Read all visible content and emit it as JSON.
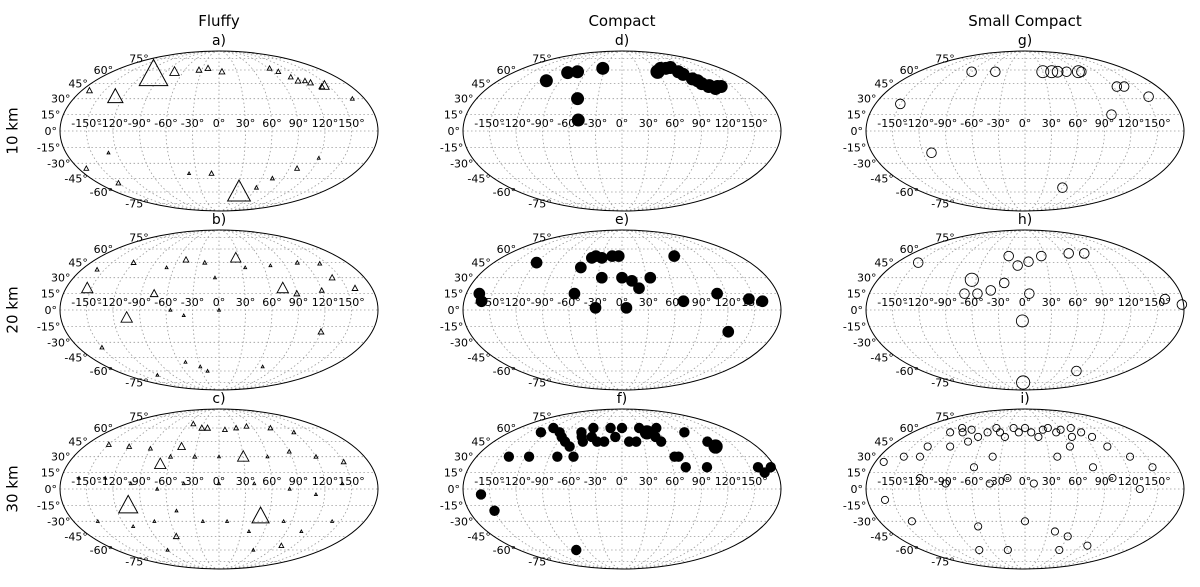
{
  "columns": [
    "Fluffy",
    "Compact",
    "Small Compact"
  ],
  "rows": [
    "10 km",
    "20 km",
    "30 km"
  ],
  "lon_ticks": [
    "-150°",
    "-120°",
    "-90°",
    "-60°",
    "-30°",
    "0°",
    "30°",
    "60°",
    "90°",
    "120°",
    "150°"
  ],
  "lat_ticks": [
    "75°",
    "60°",
    "45°",
    "30°",
    "15°",
    "0°",
    "-15°",
    "-30°",
    "-45°",
    "-60°",
    "-75°"
  ],
  "chart_data": [
    {
      "type": "scatter",
      "projection": "mollweide",
      "panel": "a)",
      "column": "Fluffy",
      "row": "10 km",
      "marker": "triangle-open",
      "points": [
        [
          -105,
          55,
          3
        ],
        [
          -130,
          32,
          1.6
        ],
        [
          -170,
          38,
          0.6
        ],
        [
          -75,
          58,
          1
        ],
        [
          -35,
          60,
          0.6
        ],
        [
          -20,
          62,
          0.6
        ],
        [
          5,
          58,
          0.6
        ],
        [
          92,
          62,
          0.5
        ],
        [
          100,
          58,
          0.5
        ],
        [
          110,
          52,
          0.5
        ],
        [
          115,
          48,
          0.6
        ],
        [
          125,
          48,
          0.5
        ],
        [
          130,
          46,
          0.6
        ],
        [
          140,
          42,
          0.6
        ],
        [
          145,
          43,
          1
        ],
        [
          165,
          30,
          0.4
        ],
        [
          -170,
          -35,
          0.5
        ],
        [
          -130,
          -20,
          0.3
        ],
        [
          -150,
          -50,
          0.5
        ],
        [
          -40,
          -40,
          0.3
        ],
        [
          -10,
          -40,
          0.5
        ],
        [
          35,
          -60,
          2.4
        ],
        [
          60,
          -55,
          0.4
        ],
        [
          75,
          -45,
          0.4
        ],
        [
          100,
          -35,
          0.5
        ],
        [
          120,
          -25,
          0.3
        ]
      ]
    },
    {
      "type": "scatter",
      "projection": "mollweide",
      "panel": "d)",
      "column": "Compact",
      "row": "10 km",
      "marker": "circle-filled",
      "points": [
        [
          -110,
          48,
          1
        ],
        [
          -90,
          57,
          1
        ],
        [
          -75,
          58,
          1
        ],
        [
          -55,
          30,
          1
        ],
        [
          -35,
          62,
          1
        ],
        [
          -50,
          10,
          1
        ],
        [
          60,
          58,
          1.1
        ],
        [
          70,
          62,
          1
        ],
        [
          80,
          62,
          1
        ],
        [
          90,
          63,
          1
        ],
        [
          95,
          58,
          1
        ],
        [
          98,
          55,
          1
        ],
        [
          105,
          50,
          1
        ],
        [
          110,
          48,
          1
        ],
        [
          112,
          45,
          1
        ],
        [
          118,
          42,
          1
        ],
        [
          120,
          43,
          1
        ],
        [
          125,
          40,
          1
        ],
        [
          130,
          42,
          1
        ],
        [
          135,
          42,
          1
        ]
      ]
    },
    {
      "type": "scatter",
      "projection": "mollweide",
      "panel": "g)",
      "column": "Small Compact",
      "row": "10 km",
      "marker": "circle-open",
      "points": [
        [
          -150,
          25,
          0.8
        ],
        [
          -90,
          58,
          0.8
        ],
        [
          -50,
          58,
          0.8
        ],
        [
          30,
          58,
          1
        ],
        [
          45,
          58,
          1
        ],
        [
          55,
          58,
          0.9
        ],
        [
          70,
          58,
          0.8
        ],
        [
          90,
          58,
          1
        ],
        [
          95,
          58,
          0.8
        ],
        [
          125,
          42,
          0.8
        ],
        [
          135,
          42,
          0.8
        ],
        [
          155,
          32,
          0.8
        ],
        [
          100,
          15,
          0.8
        ],
        [
          -110,
          -20,
          0.8
        ],
        [
          60,
          -55,
          0.8
        ]
      ]
    },
    {
      "type": "scatter",
      "projection": "mollweide",
      "panel": "b)",
      "column": "Fluffy",
      "row": "20 km",
      "marker": "triangle-open",
      "points": [
        [
          -155,
          20,
          1.2
        ],
        [
          -105,
          -7,
          1.2
        ],
        [
          -75,
          15,
          0.8
        ],
        [
          -160,
          38,
          0.4
        ],
        [
          -120,
          45,
          0.5
        ],
        [
          -70,
          40,
          0.3
        ],
        [
          -48,
          48,
          0.6
        ],
        [
          -20,
          45,
          0.4
        ],
        [
          -5,
          30,
          0.3
        ],
        [
          25,
          50,
          1.1
        ],
        [
          35,
          40,
          0.3
        ],
        [
          75,
          20,
          1.2
        ],
        [
          90,
          15,
          0.6
        ],
        [
          120,
          18,
          0.5
        ],
        [
          140,
          30,
          0.6
        ],
        [
          160,
          20,
          0.6
        ],
        [
          110,
          45,
          0.4
        ],
        [
          140,
          44,
          0.4
        ],
        [
          70,
          42,
          0.3
        ],
        [
          -120,
          -65,
          0.3
        ],
        [
          -150,
          -35,
          0.4
        ],
        [
          -55,
          0,
          0.3
        ],
        [
          -40,
          -5,
          0.3
        ],
        [
          0,
          0,
          0.3
        ],
        [
          120,
          -20,
          0.6
        ],
        [
          -50,
          -50,
          0.3
        ],
        [
          -30,
          -55,
          0.3
        ],
        [
          -20,
          -60,
          0.3
        ],
        [
          70,
          -55,
          0.3
        ]
      ]
    },
    {
      "type": "scatter",
      "projection": "mollweide",
      "panel": "e)",
      "column": "Compact",
      "row": "20 km",
      "marker": "circle-filled",
      "points": [
        [
          -165,
          15,
          0.9
        ],
        [
          -160,
          8,
          0.9
        ],
        [
          -120,
          45,
          0.9
        ],
        [
          -55,
          40,
          0.9
        ],
        [
          -45,
          50,
          0.9
        ],
        [
          -40,
          52,
          0.9
        ],
        [
          -30,
          50,
          0.9
        ],
        [
          -15,
          52,
          0.9
        ],
        [
          -5,
          52,
          0.9
        ],
        [
          -25,
          30,
          0.9
        ],
        [
          0,
          30,
          0.9
        ],
        [
          12,
          27,
          0.9
        ],
        [
          20,
          20,
          0.9
        ],
        [
          35,
          30,
          0.9
        ],
        [
          80,
          52,
          0.9
        ],
        [
          -55,
          15,
          0.9
        ],
        [
          -30,
          2,
          0.9
        ],
        [
          5,
          2,
          0.9
        ],
        [
          70,
          8,
          0.9
        ],
        [
          110,
          15,
          0.9
        ],
        [
          145,
          10,
          0.9
        ],
        [
          160,
          8,
          0.9
        ],
        [
          125,
          -20,
          0.9
        ]
      ]
    },
    {
      "type": "scatter",
      "projection": "mollweide",
      "panel": "h)",
      "column": "Small Compact",
      "row": "20 km",
      "marker": "circle-open",
      "points": [
        [
          -150,
          45,
          0.8
        ],
        [
          -65,
          28,
          1.1
        ],
        [
          -70,
          15,
          0.8
        ],
        [
          -55,
          15,
          0.8
        ],
        [
          -40,
          18,
          0.8
        ],
        [
          -25,
          25,
          0.8
        ],
        [
          -25,
          52,
          0.8
        ],
        [
          -10,
          42,
          0.8
        ],
        [
          5,
          46,
          0.8
        ],
        [
          25,
          52,
          0.8
        ],
        [
          70,
          55,
          0.8
        ],
        [
          95,
          55,
          0.8
        ],
        [
          5,
          15,
          0.8
        ],
        [
          -3,
          -10,
          1
        ],
        [
          160,
          10,
          0.8
        ],
        [
          178,
          5,
          0.8
        ],
        [
          -5,
          -75,
          1.1
        ],
        [
          90,
          -60,
          0.8
        ]
      ]
    },
    {
      "type": "scatter",
      "projection": "mollweide",
      "panel": "c)",
      "column": "Fluffy",
      "row": "30 km",
      "marker": "triangle-open",
      "points": [
        [
          -105,
          -15,
          2
        ],
        [
          -70,
          23,
          1.2
        ],
        [
          -50,
          40,
          0.8
        ],
        [
          30,
          30,
          1.2
        ],
        [
          50,
          -25,
          1.8
        ],
        [
          -60,
          -45,
          0.6
        ],
        [
          -30,
          60,
          0.6
        ],
        [
          -50,
          65,
          0.5
        ],
        [
          -20,
          60,
          0.6
        ],
        [
          10,
          58,
          0.5
        ],
        [
          30,
          60,
          0.5
        ],
        [
          50,
          62,
          0.5
        ],
        [
          90,
          60,
          0.5
        ],
        [
          120,
          55,
          0.4
        ],
        [
          -150,
          42,
          0.5
        ],
        [
          -120,
          40,
          0.5
        ],
        [
          -90,
          38,
          0.4
        ],
        [
          -60,
          30,
          0.4
        ],
        [
          -30,
          30,
          0.4
        ],
        [
          0,
          30,
          0.3
        ],
        [
          60,
          30,
          0.3
        ],
        [
          90,
          35,
          0.4
        ],
        [
          120,
          30,
          0.4
        ],
        [
          150,
          25,
          0.5
        ],
        [
          -160,
          10,
          0.3
        ],
        [
          -130,
          10,
          0.3
        ],
        [
          -100,
          5,
          0.3
        ],
        [
          -70,
          0,
          0.3
        ],
        [
          -40,
          5,
          0.3
        ],
        [
          0,
          5,
          0.3
        ],
        [
          40,
          5,
          0.3
        ],
        [
          80,
          0,
          0.3
        ],
        [
          110,
          -5,
          0.3
        ],
        [
          140,
          5,
          0.3
        ],
        [
          -150,
          -30,
          0.3
        ],
        [
          -110,
          -35,
          0.3
        ],
        [
          -80,
          -30,
          0.3
        ],
        [
          -50,
          -20,
          0.3
        ],
        [
          -20,
          -30,
          0.3
        ],
        [
          10,
          -30,
          0.3
        ],
        [
          40,
          -40,
          0.3
        ],
        [
          80,
          -30,
          0.3
        ],
        [
          110,
          -40,
          0.3
        ],
        [
          140,
          -30,
          0.3
        ],
        [
          -90,
          -60,
          0.3
        ],
        [
          60,
          -60,
          0.3
        ],
        [
          100,
          -55,
          0.5
        ]
      ]
    },
    {
      "type": "scatter",
      "projection": "mollweide",
      "panel": "f)",
      "column": "Compact",
      "row": "30 km",
      "marker": "circle-filled",
      "points": [
        [
          -160,
          -5,
          0.8
        ],
        [
          -140,
          30,
          0.8
        ],
        [
          -130,
          55,
          0.8
        ],
        [
          -120,
          60,
          0.8
        ],
        [
          -115,
          30,
          0.8
        ],
        [
          -100,
          55,
          0.8
        ],
        [
          -90,
          50,
          0.8
        ],
        [
          -80,
          45,
          0.8
        ],
        [
          -70,
          40,
          0.8
        ],
        [
          -65,
          55,
          0.8
        ],
        [
          -60,
          50,
          0.8
        ],
        [
          -55,
          45,
          0.8
        ],
        [
          -50,
          60,
          0.8
        ],
        [
          -45,
          50,
          0.8
        ],
        [
          -35,
          45,
          0.8
        ],
        [
          -25,
          45,
          0.8
        ],
        [
          -20,
          60,
          0.8
        ],
        [
          -10,
          50,
          0.8
        ],
        [
          0,
          60,
          0.8
        ],
        [
          10,
          45,
          0.8
        ],
        [
          20,
          45,
          0.8
        ],
        [
          30,
          60,
          0.8
        ],
        [
          40,
          55,
          1.1
        ],
        [
          50,
          50,
          0.8
        ],
        [
          55,
          45,
          0.8
        ],
        [
          60,
          60,
          0.8
        ],
        [
          65,
          30,
          0.8
        ],
        [
          70,
          30,
          0.8
        ],
        [
          75,
          20,
          0.8
        ],
        [
          100,
          55,
          0.8
        ],
        [
          120,
          45,
          0.8
        ],
        [
          125,
          40,
          1.1
        ],
        [
          160,
          20,
          0.8
        ],
        [
          175,
          20,
          0.8
        ],
        [
          165,
          15,
          0.8
        ],
        [
          -150,
          -20,
          0.8
        ],
        [
          -80,
          -60,
          0.8
        ],
        [
          -80,
          30,
          0.8
        ],
        [
          -60,
          30,
          0.8
        ],
        [
          100,
          20,
          0.8
        ]
      ]
    },
    {
      "type": "scatter",
      "projection": "mollweide",
      "panel": "i)",
      "column": "Small Compact",
      "row": "30 km",
      "marker": "circle-open",
      "points": [
        [
          -170,
          25,
          0.6
        ],
        [
          -150,
          30,
          0.6
        ],
        [
          -130,
          40,
          0.6
        ],
        [
          -120,
          55,
          0.6
        ],
        [
          -110,
          60,
          0.6
        ],
        [
          -100,
          55,
          0.6
        ],
        [
          -90,
          58,
          0.6
        ],
        [
          -80,
          45,
          0.6
        ],
        [
          -70,
          50,
          0.6
        ],
        [
          -60,
          55,
          0.6
        ],
        [
          -50,
          60,
          0.6
        ],
        [
          -40,
          55,
          0.6
        ],
        [
          -30,
          50,
          0.6
        ],
        [
          -20,
          60,
          0.6
        ],
        [
          -10,
          55,
          0.6
        ],
        [
          0,
          60,
          0.6
        ],
        [
          10,
          55,
          0.6
        ],
        [
          20,
          50,
          0.6
        ],
        [
          30,
          58,
          0.6
        ],
        [
          40,
          60,
          0.6
        ],
        [
          50,
          55,
          0.6
        ],
        [
          60,
          58,
          0.6
        ],
        [
          70,
          50,
          0.6
        ],
        [
          80,
          60,
          0.6
        ],
        [
          90,
          55,
          0.6
        ],
        [
          100,
          50,
          0.6
        ],
        [
          110,
          40,
          0.6
        ],
        [
          130,
          30,
          0.6
        ],
        [
          150,
          20,
          0.6
        ],
        [
          -160,
          -10,
          0.6
        ],
        [
          -140,
          -30,
          0.6
        ],
        [
          -130,
          30,
          0.6
        ],
        [
          -100,
          40,
          0.6
        ],
        [
          -60,
          20,
          0.6
        ],
        [
          -40,
          30,
          0.6
        ],
        [
          -20,
          10,
          0.6
        ],
        [
          10,
          5,
          0.6
        ],
        [
          40,
          30,
          0.6
        ],
        [
          60,
          40,
          0.6
        ],
        [
          80,
          20,
          0.6
        ],
        [
          100,
          10,
          0.6
        ],
        [
          130,
          0,
          0.6
        ],
        [
          -60,
          -35,
          0.6
        ],
        [
          0,
          -30,
          0.6
        ],
        [
          40,
          -40,
          0.6
        ],
        [
          60,
          -45,
          0.6
        ],
        [
          100,
          -55,
          0.6
        ],
        [
          -30,
          -60,
          0.6
        ],
        [
          -80,
          -60,
          0.6
        ],
        [
          60,
          -60,
          0.6
        ],
        [
          -120,
          10,
          0.6
        ],
        [
          -90,
          5,
          0.6
        ],
        [
          -40,
          5,
          0.6
        ]
      ]
    }
  ]
}
